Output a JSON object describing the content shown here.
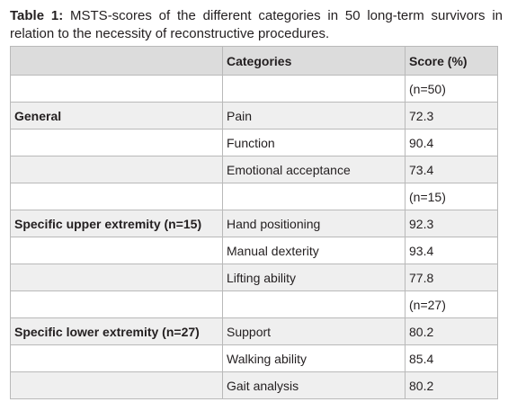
{
  "caption": {
    "label": "Table 1:",
    "text": " MSTS-scores of the different categories in 50 long-term survivors in relation to the necessity of reconstructive procedures."
  },
  "table": {
    "headers": [
      "",
      "Categories",
      "Score (%)"
    ],
    "rows": [
      [
        "",
        "",
        "(n=50)"
      ],
      [
        "General",
        "Pain",
        "72.3"
      ],
      [
        "",
        "Function",
        "90.4"
      ],
      [
        "",
        "Emotional acceptance",
        "73.4"
      ],
      [
        "",
        "",
        "(n=15)"
      ],
      [
        "Specific upper extremity (n=15)",
        "Hand positioning",
        "92.3"
      ],
      [
        "",
        "Manual dexterity",
        "93.4"
      ],
      [
        "",
        "Lifting ability",
        "77.8"
      ],
      [
        "",
        "",
        "(n=27)"
      ],
      [
        "Specific lower extremity (n=27)",
        "Support",
        "80.2"
      ],
      [
        "",
        "Walking ability",
        "85.4"
      ],
      [
        "",
        "Gait analysis",
        "80.2"
      ]
    ]
  }
}
